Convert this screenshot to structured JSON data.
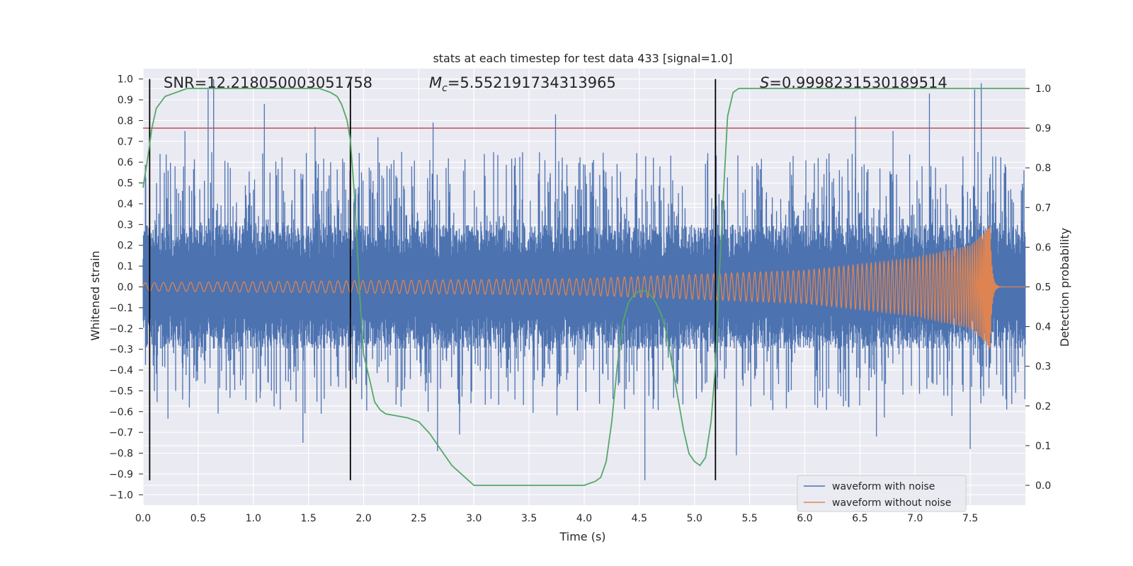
{
  "chart_data": {
    "type": "line",
    "title": "stats at each timestep for test data 433 [signal=1.0]",
    "xlabel": "Time (s)",
    "ylabel": "Whitened strain",
    "y2label": "Detection probability",
    "xlim": [
      0.0,
      8.0
    ],
    "ylim": [
      -1.05,
      1.05
    ],
    "y2lim": [
      -0.05,
      1.05
    ],
    "xticks": [
      0.0,
      0.5,
      1.0,
      1.5,
      2.0,
      2.5,
      3.0,
      3.5,
      4.0,
      4.5,
      5.0,
      5.5,
      6.0,
      6.5,
      7.0,
      7.5
    ],
    "xtick_labels": [
      "0.0",
      "0.5",
      "1.0",
      "1.5",
      "2.0",
      "2.5",
      "3.0",
      "3.5",
      "4.0",
      "4.5",
      "5.0",
      "5.5",
      "6.0",
      "6.5",
      "7.0",
      "7.5"
    ],
    "yticks": [
      1.0,
      0.9,
      0.8,
      0.7,
      0.6,
      0.5,
      0.4,
      0.3,
      0.2,
      0.1,
      0.0,
      -0.1,
      -0.2,
      -0.3,
      -0.4,
      -0.5,
      -0.6,
      -0.7,
      -0.8,
      -0.9,
      -1.0
    ],
    "ytick_labels": [
      "1.0",
      "0.9",
      "0.8",
      "0.7",
      "0.6",
      "0.5",
      "0.4",
      "0.3",
      "0.2",
      "0.1",
      "0.0",
      "−0.1",
      "−0.2",
      "−0.3",
      "−0.4",
      "−0.5",
      "−0.6",
      "−0.7",
      "−0.8",
      "−0.9",
      "−1.0"
    ],
    "y2ticks": [
      1.0,
      0.9,
      0.8,
      0.7,
      0.6,
      0.5,
      0.4,
      0.3,
      0.2,
      0.1,
      0.0
    ],
    "y2tick_labels": [
      "1.0",
      "0.9",
      "0.8",
      "0.7",
      "0.6",
      "0.5",
      "0.4",
      "0.3",
      "0.2",
      "0.1",
      "0.0"
    ],
    "annotations": {
      "snr": "SNR=12.218050003051758",
      "mc_symbol": "M",
      "mc_sub": "c",
      "mc_value": "=5.552191734313965",
      "s_symbol": "S",
      "s_value": "=0.9998231530189514"
    },
    "threshold_probability": 0.9,
    "vertical_lines": [
      0.06,
      1.88,
      5.19
    ],
    "vertical_line_range": [
      -0.93,
      1.0
    ],
    "series": [
      {
        "name": "waveform with noise",
        "color": "#4c72b0",
        "description": "noise series",
        "core_amplitude": 0.3,
        "peaks": [
          {
            "t": 0.06,
            "v": 0.47
          },
          {
            "t": 0.29,
            "v": 0.58
          },
          {
            "t": 0.38,
            "v": 0.75
          },
          {
            "t": 0.59,
            "v": 0.95
          },
          {
            "t": 0.64,
            "v": 1.0
          },
          {
            "t": 1.1,
            "v": 0.88
          },
          {
            "t": 1.56,
            "v": 0.77
          },
          {
            "t": 2.13,
            "v": 0.72
          },
          {
            "t": 2.63,
            "v": 0.79
          },
          {
            "t": 3.74,
            "v": 0.83
          },
          {
            "t": 6.46,
            "v": 0.82
          },
          {
            "t": 6.8,
            "v": 0.75
          },
          {
            "t": 7.13,
            "v": 0.93
          },
          {
            "t": 7.54,
            "v": 0.95
          },
          {
            "t": 7.6,
            "v": 0.98
          },
          {
            "t": 1.45,
            "v": -0.75
          },
          {
            "t": 2.67,
            "v": -0.79
          },
          {
            "t": 4.55,
            "v": -0.93
          },
          {
            "t": 5.38,
            "v": -0.81
          },
          {
            "t": 7.5,
            "v": -0.78
          },
          {
            "t": 2.87,
            "v": -0.71
          },
          {
            "t": 0.42,
            "v": -0.58
          },
          {
            "t": 6.65,
            "v": -0.72
          }
        ]
      },
      {
        "name": "waveform without noise",
        "color": "#dd8452",
        "description": "chirp waveform",
        "chirp_f0": 12,
        "chirp_merger_time": 7.68,
        "amplitude_points": [
          {
            "t": 0.0,
            "v": 0.02
          },
          {
            "t": 4.0,
            "v": 0.04
          },
          {
            "t": 6.0,
            "v": 0.08
          },
          {
            "t": 7.0,
            "v": 0.14
          },
          {
            "t": 7.5,
            "v": 0.2
          },
          {
            "t": 7.65,
            "v": 0.27
          },
          {
            "t": 7.69,
            "v": 0.32
          }
        ]
      },
      {
        "name": "detection probability",
        "color": "#55a868",
        "axis": "right",
        "x": [
          0.0,
          0.04,
          0.08,
          0.12,
          0.2,
          0.3,
          0.4,
          0.6,
          1.0,
          1.4,
          1.6,
          1.7,
          1.76,
          1.8,
          1.85,
          1.88,
          1.92,
          1.96,
          2.0,
          2.06,
          2.1,
          2.15,
          2.2,
          2.3,
          2.4,
          2.5,
          2.6,
          2.7,
          2.8,
          2.9,
          3.0,
          3.2,
          3.5,
          3.8,
          4.0,
          4.05,
          4.1,
          4.15,
          4.2,
          4.25,
          4.3,
          4.35,
          4.4,
          4.45,
          4.5,
          4.55,
          4.6,
          4.65,
          4.7,
          4.75,
          4.8,
          4.85,
          4.9,
          4.95,
          5.0,
          5.05,
          5.1,
          5.15,
          5.19,
          5.22,
          5.26,
          5.3,
          5.35,
          5.4,
          5.6,
          6.0,
          7.0,
          8.0
        ],
        "y": [
          0.75,
          0.82,
          0.9,
          0.95,
          0.98,
          0.99,
          1.0,
          1.0,
          1.0,
          1.0,
          1.0,
          0.99,
          0.98,
          0.96,
          0.92,
          0.87,
          0.72,
          0.5,
          0.33,
          0.26,
          0.21,
          0.19,
          0.18,
          0.175,
          0.17,
          0.16,
          0.13,
          0.09,
          0.05,
          0.025,
          0.0,
          0.0,
          0.0,
          0.0,
          0.0,
          0.005,
          0.01,
          0.02,
          0.06,
          0.16,
          0.3,
          0.41,
          0.46,
          0.48,
          0.49,
          0.49,
          0.48,
          0.46,
          0.43,
          0.38,
          0.3,
          0.22,
          0.14,
          0.08,
          0.06,
          0.05,
          0.07,
          0.16,
          0.3,
          0.5,
          0.72,
          0.93,
          0.99,
          1.0,
          1.0,
          1.0,
          1.0,
          1.0
        ]
      }
    ],
    "legend": {
      "location": "lower right",
      "entries": [
        "waveform with noise",
        "waveform without noise"
      ]
    }
  },
  "colors": {
    "axes_bg": "#eaeaf2",
    "grid": "#ffffff",
    "threshold": "#c44e52",
    "vline": "#000000",
    "probability": "#55a868"
  }
}
